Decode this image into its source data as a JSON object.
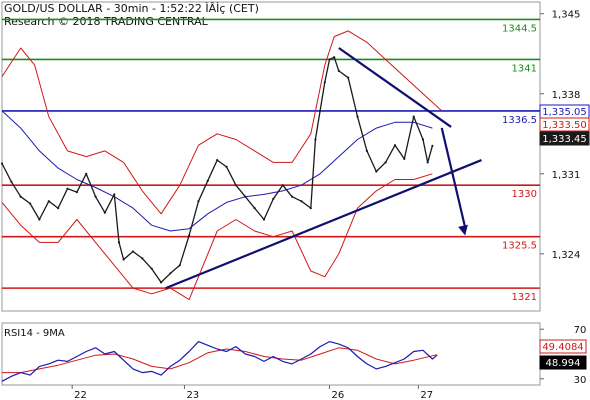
{
  "header": {
    "title": "GOLD/US DOLLAR - 30min - 1:52:22 ÌÂÌç (CET)",
    "subtitle": "Research © 2018 TRADING CENTRAL"
  },
  "colors": {
    "price": "#1a1a1a",
    "bollinger": "#d01818",
    "moving_average": "#1c1cb0",
    "resistance": "#1a8c1a",
    "pivot": "#1a1ab4",
    "support": "#d01818",
    "trendline": "#101070",
    "rsi": "#1a1ab4",
    "rsi_ma": "#d01818"
  },
  "chart_data": [
    {
      "type": "line",
      "name": "price-panel",
      "x_ticks": [
        {
          "label": "22",
          "x": 30
        },
        {
          "label": "23",
          "x": 78
        },
        {
          "label": "26",
          "x": 140
        },
        {
          "label": "27",
          "x": 178
        }
      ],
      "xlim": [
        0,
        230
      ],
      "ylim": [
        1319.0,
        1346.2
      ],
      "y_ticks": [
        1345,
        1338,
        1331,
        1324
      ],
      "levels": [
        {
          "value": 1344.5,
          "label": "1344.5",
          "kind": "resistance"
        },
        {
          "value": 1341.0,
          "label": "1341",
          "kind": "resistance"
        },
        {
          "value": 1336.5,
          "label": "1336.5",
          "kind": "pivot"
        },
        {
          "value": 1330.0,
          "label": "1330",
          "kind": "support"
        },
        {
          "value": 1325.5,
          "label": "1325.5",
          "kind": "support"
        },
        {
          "value": 1321.0,
          "label": "1321",
          "kind": "support"
        }
      ],
      "last_price_labels": [
        {
          "value": 1335.05,
          "label": "1,335.05",
          "kind": "pivot"
        },
        {
          "value": 1333.5,
          "label": "1,333.50",
          "kind": "support"
        },
        {
          "value": 1333.45,
          "label": "1,333.45",
          "kind": "price"
        }
      ],
      "price": [
        {
          "x": 0,
          "y": 1331.9
        },
        {
          "x": 4,
          "y": 1330.3
        },
        {
          "x": 8,
          "y": 1329.0
        },
        {
          "x": 12,
          "y": 1328.4
        },
        {
          "x": 16,
          "y": 1327.0
        },
        {
          "x": 20,
          "y": 1328.6
        },
        {
          "x": 24,
          "y": 1328.0
        },
        {
          "x": 28,
          "y": 1329.7
        },
        {
          "x": 32,
          "y": 1329.4
        },
        {
          "x": 36,
          "y": 1331.0
        },
        {
          "x": 40,
          "y": 1329.0
        },
        {
          "x": 44,
          "y": 1327.6
        },
        {
          "x": 48,
          "y": 1329.2
        },
        {
          "x": 50,
          "y": 1325.0
        },
        {
          "x": 52,
          "y": 1323.5
        },
        {
          "x": 56,
          "y": 1324.2
        },
        {
          "x": 60,
          "y": 1323.6
        },
        {
          "x": 64,
          "y": 1322.7
        },
        {
          "x": 68,
          "y": 1321.5
        },
        {
          "x": 72,
          "y": 1322.3
        },
        {
          "x": 76,
          "y": 1323.0
        },
        {
          "x": 80,
          "y": 1325.6
        },
        {
          "x": 84,
          "y": 1328.6
        },
        {
          "x": 88,
          "y": 1330.4
        },
        {
          "x": 92,
          "y": 1332.2
        },
        {
          "x": 96,
          "y": 1331.6
        },
        {
          "x": 100,
          "y": 1330.0
        },
        {
          "x": 104,
          "y": 1329.0
        },
        {
          "x": 108,
          "y": 1328.0
        },
        {
          "x": 112,
          "y": 1327.0
        },
        {
          "x": 116,
          "y": 1328.8
        },
        {
          "x": 120,
          "y": 1330.0
        },
        {
          "x": 124,
          "y": 1329.0
        },
        {
          "x": 128,
          "y": 1328.6
        },
        {
          "x": 132,
          "y": 1328.0
        },
        {
          "x": 134,
          "y": 1334.0
        },
        {
          "x": 136,
          "y": 1336.5
        },
        {
          "x": 138,
          "y": 1339.0
        },
        {
          "x": 140,
          "y": 1341.0
        },
        {
          "x": 142,
          "y": 1341.2
        },
        {
          "x": 144,
          "y": 1340.0
        },
        {
          "x": 148,
          "y": 1339.4
        },
        {
          "x": 152,
          "y": 1336.0
        },
        {
          "x": 156,
          "y": 1333.0
        },
        {
          "x": 160,
          "y": 1331.2
        },
        {
          "x": 164,
          "y": 1332.0
        },
        {
          "x": 168,
          "y": 1333.5
        },
        {
          "x": 172,
          "y": 1332.3
        },
        {
          "x": 176,
          "y": 1336.0
        },
        {
          "x": 180,
          "y": 1334.0
        },
        {
          "x": 182,
          "y": 1332.0
        },
        {
          "x": 184,
          "y": 1333.45
        }
      ],
      "bollinger_upper": [
        {
          "x": 0,
          "y": 1339.5
        },
        {
          "x": 8,
          "y": 1342.0
        },
        {
          "x": 14,
          "y": 1340.5
        },
        {
          "x": 20,
          "y": 1336.0
        },
        {
          "x": 28,
          "y": 1333.0
        },
        {
          "x": 36,
          "y": 1332.5
        },
        {
          "x": 44,
          "y": 1333.0
        },
        {
          "x": 52,
          "y": 1332.0
        },
        {
          "x": 60,
          "y": 1329.5
        },
        {
          "x": 68,
          "y": 1327.5
        },
        {
          "x": 76,
          "y": 1330.0
        },
        {
          "x": 84,
          "y": 1333.5
        },
        {
          "x": 92,
          "y": 1334.5
        },
        {
          "x": 100,
          "y": 1334.0
        },
        {
          "x": 108,
          "y": 1333.0
        },
        {
          "x": 116,
          "y": 1332.0
        },
        {
          "x": 124,
          "y": 1332.0
        },
        {
          "x": 132,
          "y": 1334.5
        },
        {
          "x": 138,
          "y": 1340.5
        },
        {
          "x": 142,
          "y": 1343.0
        },
        {
          "x": 148,
          "y": 1343.5
        },
        {
          "x": 156,
          "y": 1342.5
        },
        {
          "x": 164,
          "y": 1341.0
        },
        {
          "x": 172,
          "y": 1339.5
        },
        {
          "x": 180,
          "y": 1338.0
        },
        {
          "x": 188,
          "y": 1336.5
        }
      ],
      "bollinger_lower": [
        {
          "x": 0,
          "y": 1328.5
        },
        {
          "x": 8,
          "y": 1326.5
        },
        {
          "x": 16,
          "y": 1325.0
        },
        {
          "x": 24,
          "y": 1325.0
        },
        {
          "x": 32,
          "y": 1327.0
        },
        {
          "x": 40,
          "y": 1325.0
        },
        {
          "x": 48,
          "y": 1323.0
        },
        {
          "x": 56,
          "y": 1321.0
        },
        {
          "x": 64,
          "y": 1320.5
        },
        {
          "x": 72,
          "y": 1321.0
        },
        {
          "x": 80,
          "y": 1320.0
        },
        {
          "x": 86,
          "y": 1323.0
        },
        {
          "x": 92,
          "y": 1326.0
        },
        {
          "x": 100,
          "y": 1327.0
        },
        {
          "x": 108,
          "y": 1326.0
        },
        {
          "x": 116,
          "y": 1325.5
        },
        {
          "x": 124,
          "y": 1326.0
        },
        {
          "x": 132,
          "y": 1322.5
        },
        {
          "x": 138,
          "y": 1322.0
        },
        {
          "x": 144,
          "y": 1324.0
        },
        {
          "x": 152,
          "y": 1328.0
        },
        {
          "x": 160,
          "y": 1329.5
        },
        {
          "x": 168,
          "y": 1330.5
        },
        {
          "x": 176,
          "y": 1330.5
        },
        {
          "x": 184,
          "y": 1331.0
        }
      ],
      "moving_average": [
        {
          "x": 0,
          "y": 1336.5
        },
        {
          "x": 8,
          "y": 1335.0
        },
        {
          "x": 16,
          "y": 1333.0
        },
        {
          "x": 24,
          "y": 1331.5
        },
        {
          "x": 32,
          "y": 1330.5
        },
        {
          "x": 40,
          "y": 1329.8
        },
        {
          "x": 48,
          "y": 1329.0
        },
        {
          "x": 56,
          "y": 1328.0
        },
        {
          "x": 64,
          "y": 1326.5
        },
        {
          "x": 72,
          "y": 1326.0
        },
        {
          "x": 80,
          "y": 1326.2
        },
        {
          "x": 88,
          "y": 1327.5
        },
        {
          "x": 96,
          "y": 1328.5
        },
        {
          "x": 104,
          "y": 1329.0
        },
        {
          "x": 112,
          "y": 1329.2
        },
        {
          "x": 120,
          "y": 1329.5
        },
        {
          "x": 128,
          "y": 1330.0
        },
        {
          "x": 136,
          "y": 1331.0
        },
        {
          "x": 144,
          "y": 1332.5
        },
        {
          "x": 152,
          "y": 1334.0
        },
        {
          "x": 160,
          "y": 1335.0
        },
        {
          "x": 168,
          "y": 1335.5
        },
        {
          "x": 176,
          "y": 1335.5
        },
        {
          "x": 184,
          "y": 1335.0
        }
      ],
      "trendlines": [
        {
          "from": {
            "x": 70,
            "y": 1321.0
          },
          "to": {
            "x": 205,
            "y": 1332.2
          }
        },
        {
          "from": {
            "x": 144,
            "y": 1342.0
          },
          "to": {
            "x": 192,
            "y": 1335.1
          }
        }
      ],
      "projection_arrow": {
        "from": {
          "x": 188,
          "y": 1335.0
        },
        "to": {
          "x": 198,
          "y": 1325.6
        }
      }
    },
    {
      "type": "line",
      "name": "rsi-panel",
      "title": "RSI14 - 9MA",
      "xlim": [
        0,
        230
      ],
      "ylim": [
        25,
        75
      ],
      "y_ticks": [
        70,
        30
      ],
      "last_value_labels": [
        {
          "value": 49.4084,
          "label": "49.4084",
          "kind": "ma"
        },
        {
          "value": 48.994,
          "label": "48.994",
          "kind": "rsi"
        }
      ],
      "rsi": [
        {
          "x": 0,
          "y": 28
        },
        {
          "x": 4,
          "y": 32
        },
        {
          "x": 8,
          "y": 35
        },
        {
          "x": 12,
          "y": 33
        },
        {
          "x": 16,
          "y": 40
        },
        {
          "x": 20,
          "y": 42
        },
        {
          "x": 24,
          "y": 45
        },
        {
          "x": 28,
          "y": 44
        },
        {
          "x": 32,
          "y": 48
        },
        {
          "x": 36,
          "y": 52
        },
        {
          "x": 40,
          "y": 55
        },
        {
          "x": 44,
          "y": 50
        },
        {
          "x": 48,
          "y": 52
        },
        {
          "x": 52,
          "y": 45
        },
        {
          "x": 56,
          "y": 38
        },
        {
          "x": 60,
          "y": 35
        },
        {
          "x": 64,
          "y": 36
        },
        {
          "x": 68,
          "y": 33
        },
        {
          "x": 72,
          "y": 40
        },
        {
          "x": 76,
          "y": 45
        },
        {
          "x": 80,
          "y": 52
        },
        {
          "x": 84,
          "y": 60
        },
        {
          "x": 88,
          "y": 57
        },
        {
          "x": 92,
          "y": 54
        },
        {
          "x": 96,
          "y": 52
        },
        {
          "x": 100,
          "y": 56
        },
        {
          "x": 104,
          "y": 50
        },
        {
          "x": 108,
          "y": 48
        },
        {
          "x": 112,
          "y": 44
        },
        {
          "x": 116,
          "y": 48
        },
        {
          "x": 120,
          "y": 44
        },
        {
          "x": 124,
          "y": 42
        },
        {
          "x": 128,
          "y": 46
        },
        {
          "x": 132,
          "y": 50
        },
        {
          "x": 136,
          "y": 56
        },
        {
          "x": 140,
          "y": 60
        },
        {
          "x": 144,
          "y": 58
        },
        {
          "x": 148,
          "y": 55
        },
        {
          "x": 152,
          "y": 48
        },
        {
          "x": 156,
          "y": 42
        },
        {
          "x": 160,
          "y": 38
        },
        {
          "x": 164,
          "y": 40
        },
        {
          "x": 168,
          "y": 43
        },
        {
          "x": 172,
          "y": 46
        },
        {
          "x": 176,
          "y": 52
        },
        {
          "x": 180,
          "y": 53
        },
        {
          "x": 184,
          "y": 46
        },
        {
          "x": 186,
          "y": 48.994
        }
      ],
      "rsi_ma": [
        {
          "x": 0,
          "y": 35
        },
        {
          "x": 8,
          "y": 35
        },
        {
          "x": 16,
          "y": 38
        },
        {
          "x": 24,
          "y": 41
        },
        {
          "x": 32,
          "y": 45
        },
        {
          "x": 40,
          "y": 49
        },
        {
          "x": 48,
          "y": 50
        },
        {
          "x": 56,
          "y": 46
        },
        {
          "x": 64,
          "y": 40
        },
        {
          "x": 72,
          "y": 38
        },
        {
          "x": 80,
          "y": 43
        },
        {
          "x": 88,
          "y": 51
        },
        {
          "x": 96,
          "y": 54
        },
        {
          "x": 104,
          "y": 52
        },
        {
          "x": 112,
          "y": 48
        },
        {
          "x": 120,
          "y": 46
        },
        {
          "x": 128,
          "y": 45
        },
        {
          "x": 136,
          "y": 50
        },
        {
          "x": 144,
          "y": 55
        },
        {
          "x": 152,
          "y": 53
        },
        {
          "x": 160,
          "y": 46
        },
        {
          "x": 168,
          "y": 42
        },
        {
          "x": 176,
          "y": 45
        },
        {
          "x": 186,
          "y": 49.4084
        }
      ]
    }
  ]
}
